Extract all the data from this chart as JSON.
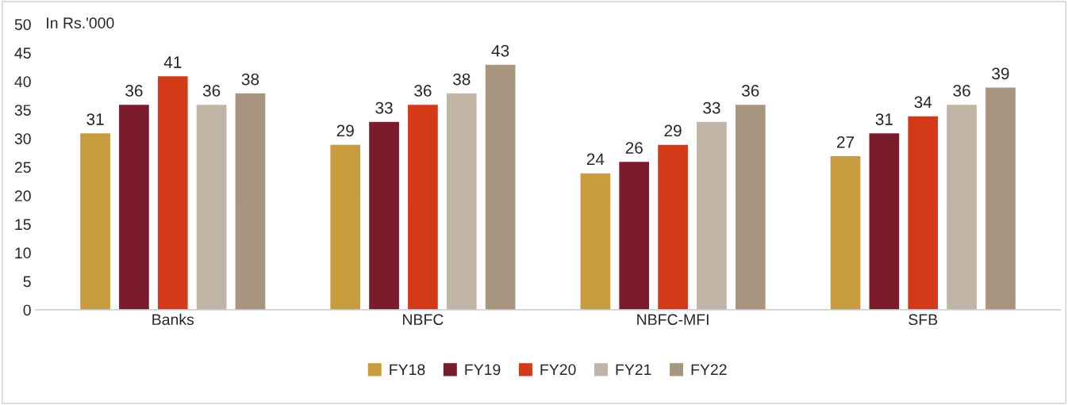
{
  "chart_data": {
    "type": "bar",
    "categories": [
      "Banks",
      "NBFC",
      "NBFC-MFI",
      "SFB"
    ],
    "series": [
      {
        "name": "FY18",
        "color": "#c89b3c",
        "values": [
          31,
          29,
          24,
          27
        ]
      },
      {
        "name": "FY19",
        "color": "#7b1c2c",
        "values": [
          36,
          33,
          26,
          31
        ]
      },
      {
        "name": "FY20",
        "color": "#d43a18",
        "values": [
          41,
          36,
          29,
          34
        ]
      },
      {
        "name": "FY21",
        "color": "#c0b5a5",
        "values": [
          36,
          38,
          33,
          36
        ]
      },
      {
        "name": "FY22",
        "color": "#a89580",
        "values": [
          38,
          43,
          36,
          39
        ]
      }
    ],
    "ylim": [
      0,
      50
    ],
    "yticks": [
      0,
      5,
      10,
      15,
      20,
      25,
      30,
      35,
      40,
      45,
      50
    ],
    "annotations": [
      "In Rs.'000"
    ],
    "data_labels": true,
    "legend": "bottom",
    "grid": false
  }
}
